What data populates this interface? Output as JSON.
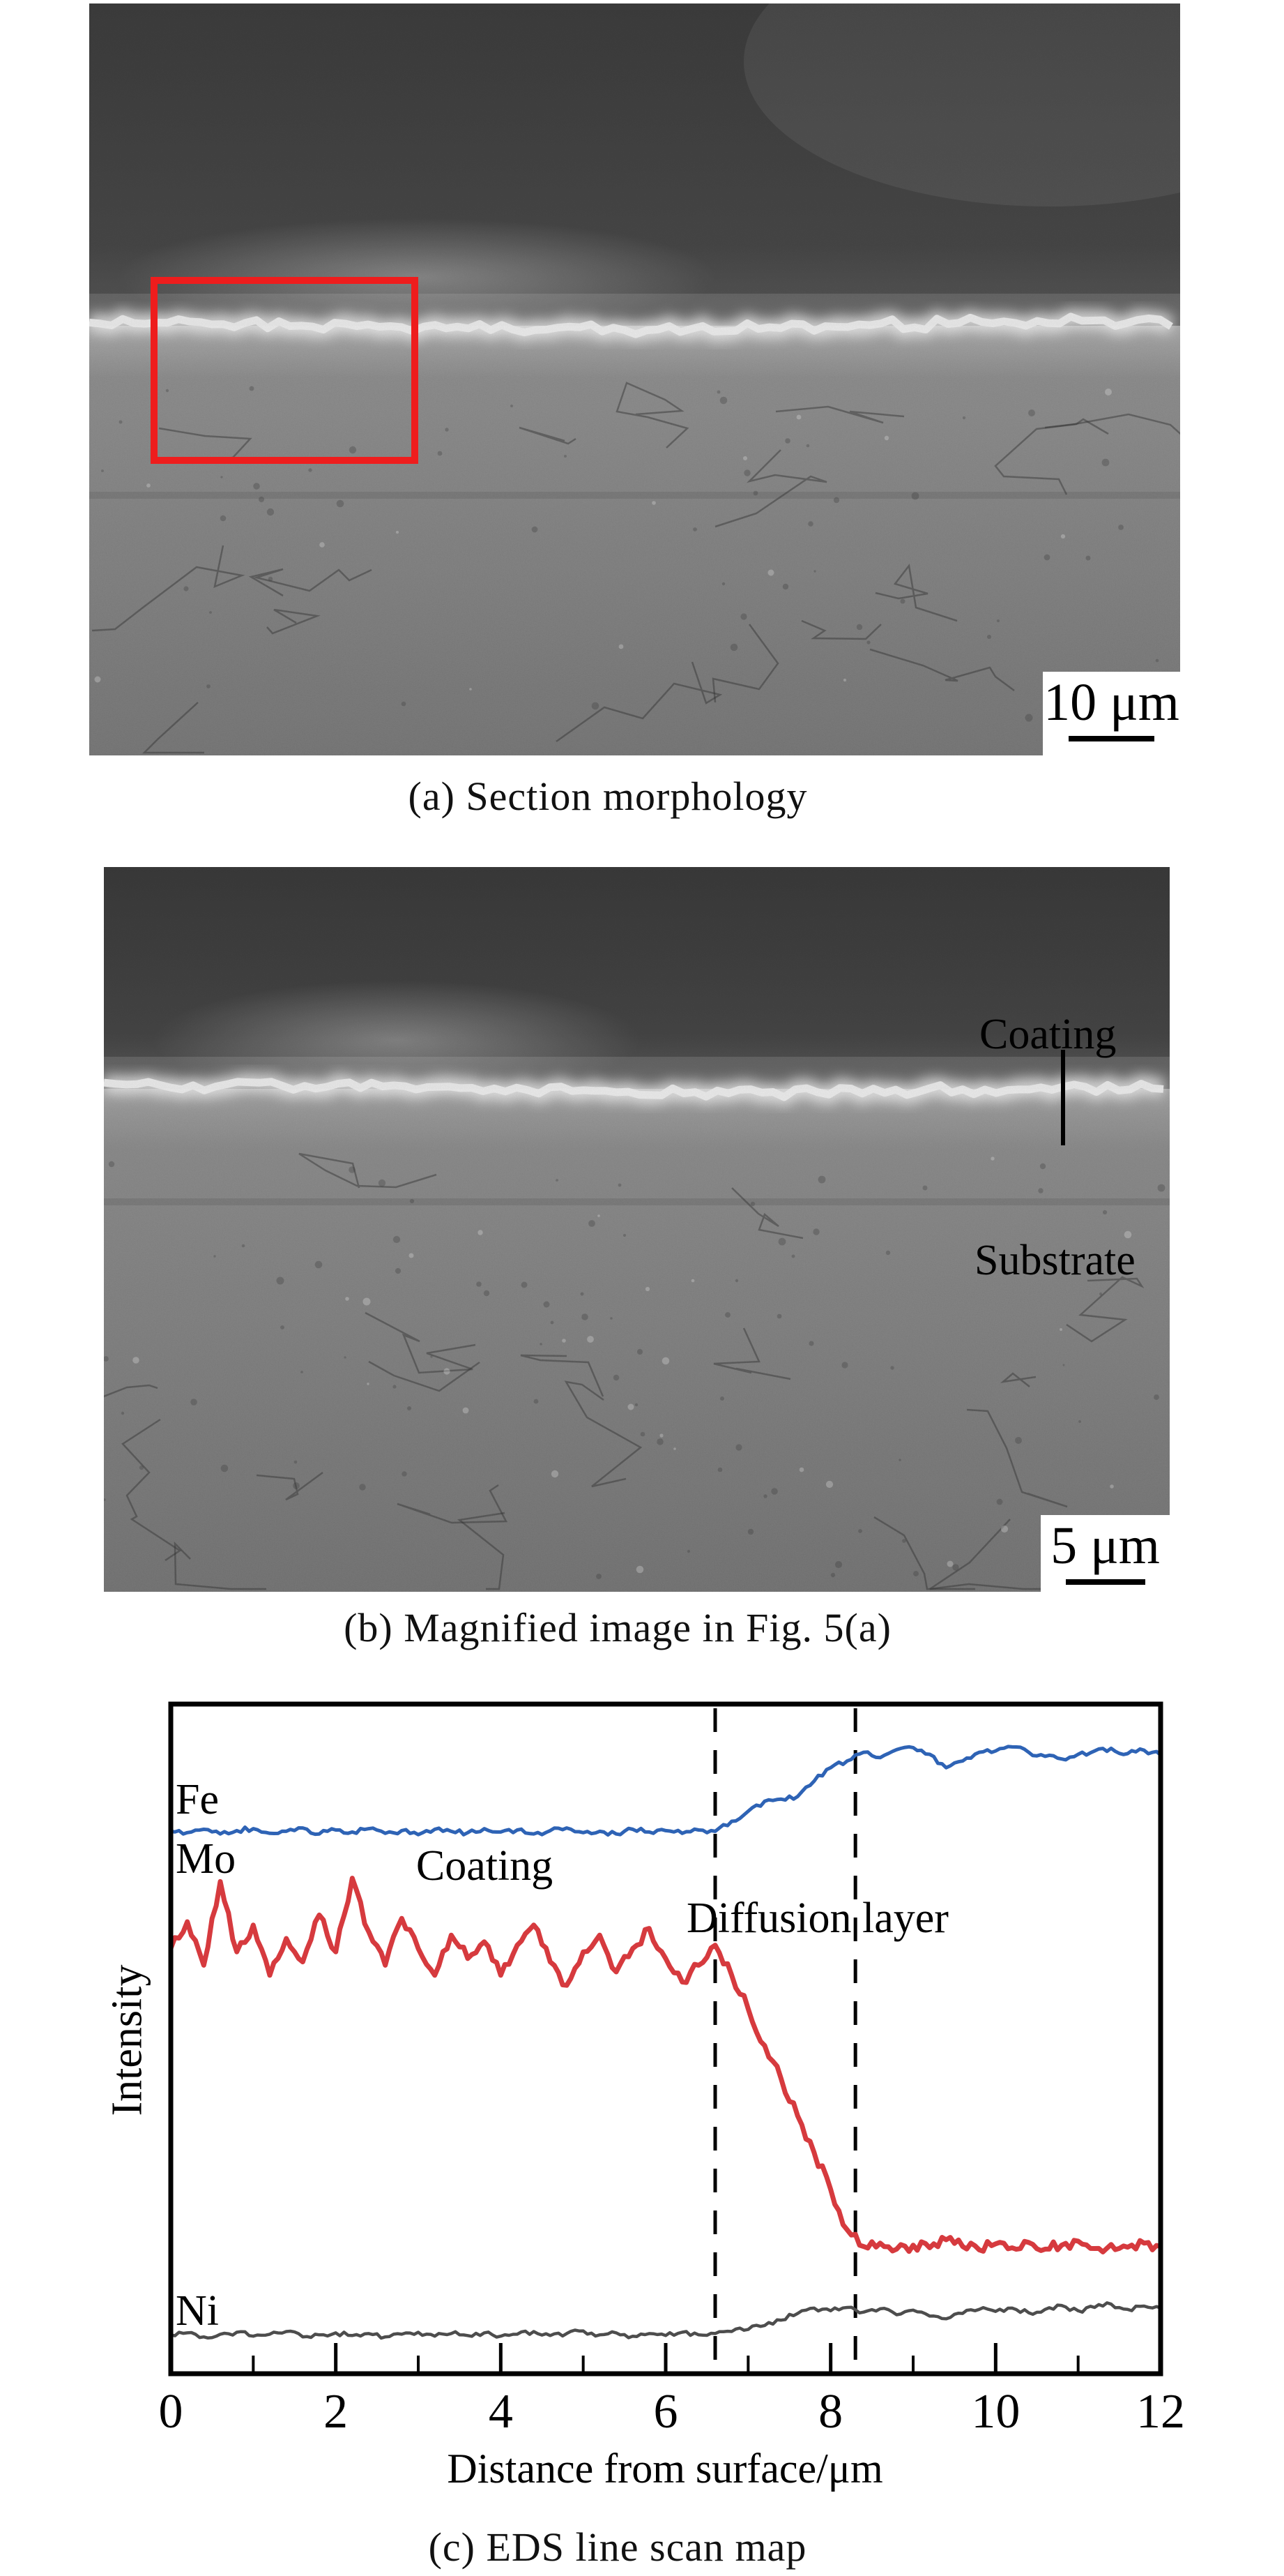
{
  "figure": {
    "panel_a": {
      "caption": "(a) Section morphology",
      "scale_bar": "10 μm"
    },
    "panel_b": {
      "caption": "(b) Magnified image in Fig. 5(a)",
      "scale_bar": "5 μm",
      "labels": {
        "coating": "Coating",
        "substrate": "Substrate"
      }
    },
    "panel_c": {
      "caption": "(c) EDS line scan map"
    }
  },
  "chart_data": {
    "type": "line",
    "title": "",
    "xlabel": "Distance from surface/μm",
    "ylabel": "Intensity",
    "xlim": [
      0,
      12
    ],
    "ylim": [
      0,
      100
    ],
    "x_ticks": [
      0,
      2,
      4,
      6,
      8,
      10,
      12
    ],
    "minor_x_ticks": [
      1,
      3,
      5,
      7,
      9,
      11
    ],
    "grid": false,
    "legend_position": "inline-labels",
    "dashed_lines_x": [
      6.6,
      8.3
    ],
    "region_labels": {
      "coating": "Coating",
      "diffusion": "Diffusion layer"
    },
    "labels": {
      "fe": "Fe",
      "mo": "Mo",
      "ni": "Ni"
    },
    "x_step": 0.2,
    "series": [
      {
        "name": "Fe",
        "color": "#2e63b5",
        "values": [
          81.0,
          80.8,
          81.3,
          80.6,
          81.1,
          81.4,
          80.7,
          81.0,
          81.5,
          80.6,
          81.2,
          80.9,
          81.4,
          80.7,
          81.1,
          80.5,
          81.3,
          81.0,
          80.8,
          81.4,
          80.9,
          81.2,
          80.6,
          81.1,
          81.5,
          80.8,
          81.0,
          80.6,
          81.3,
          80.9,
          81.1,
          80.7,
          81.2,
          81.0,
          82.5,
          84.0,
          85.5,
          85.8,
          86.2,
          88.5,
          90.5,
          91.5,
          92.8,
          92.0,
          93.2,
          93.5,
          92.5,
          90.5,
          91.5,
          92.8,
          93.0,
          93.6,
          92.8,
          92.2,
          91.8,
          92.5,
          93.0,
          93.4,
          92.6,
          93.1,
          92.4
        ]
      },
      {
        "name": "Mo",
        "color": "#d63a3e",
        "values": [
          63.5,
          67.5,
          61.0,
          73.5,
          63.0,
          67.0,
          59.5,
          65.0,
          61.5,
          68.5,
          63.0,
          74.0,
          66.0,
          61.0,
          68.0,
          63.5,
          59.5,
          65.5,
          62.0,
          64.5,
          59.5,
          64.0,
          67.0,
          61.5,
          58.0,
          63.0,
          65.5,
          60.0,
          63.5,
          66.5,
          62.0,
          58.5,
          61.0,
          64.0,
          59.5,
          54.5,
          49.0,
          44.0,
          38.5,
          33.0,
          27.5,
          21.5,
          19.0,
          19.5,
          18.6,
          19.2,
          18.8,
          20.0,
          19.0,
          18.5,
          19.4,
          18.8,
          19.6,
          18.6,
          19.2,
          19.8,
          18.7,
          19.3,
          18.9,
          19.5,
          19.0
        ]
      },
      {
        "name": "Ni",
        "color": "#4d4d4d",
        "values": [
          5.8,
          6.1,
          5.5,
          5.9,
          6.2,
          5.6,
          5.9,
          6.3,
          5.5,
          5.8,
          6.1,
          5.7,
          6.0,
          5.5,
          5.9,
          6.2,
          5.6,
          6.0,
          5.7,
          6.1,
          5.6,
          5.9,
          6.3,
          5.7,
          6.0,
          6.4,
          5.8,
          6.1,
          5.6,
          6.0,
          5.7,
          6.2,
          5.8,
          6.0,
          6.3,
          6.6,
          7.2,
          8.0,
          9.0,
          9.8,
          9.4,
          9.9,
          9.2,
          9.7,
          8.8,
          9.5,
          8.6,
          8.2,
          9.0,
          9.6,
          9.3,
          9.8,
          9.1,
          9.6,
          10.2,
          9.4,
          9.9,
          10.4,
          9.6,
          10.1,
          9.8
        ]
      }
    ]
  },
  "colors": {
    "highlight_box": "#ee1d1d",
    "fe": "#2e63b5",
    "mo": "#d63a3e",
    "ni": "#4d4d4d",
    "axis": "#000000",
    "background": "#ffffff"
  }
}
